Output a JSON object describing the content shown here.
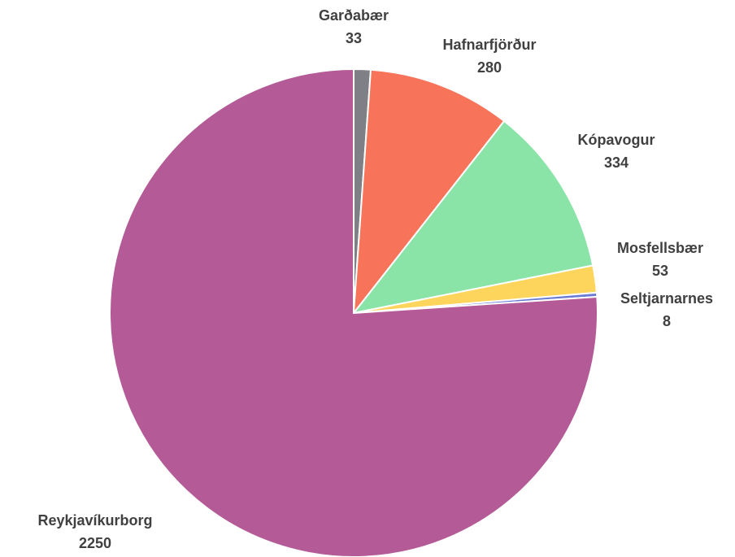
{
  "chart_data": {
    "type": "pie",
    "categories": [
      "Garðabær",
      "Hafnarfjörður",
      "Kópavogur",
      "Mosfellsbær",
      "Seltjarnarnes",
      "Reykjavíkurborg"
    ],
    "values": [
      33,
      280,
      334,
      53,
      8,
      2250
    ],
    "colors": [
      "#7f7f86",
      "#f7735a",
      "#8ae4a8",
      "#fdd55c",
      "#6a7bd6",
      "#b45a96"
    ]
  }
}
